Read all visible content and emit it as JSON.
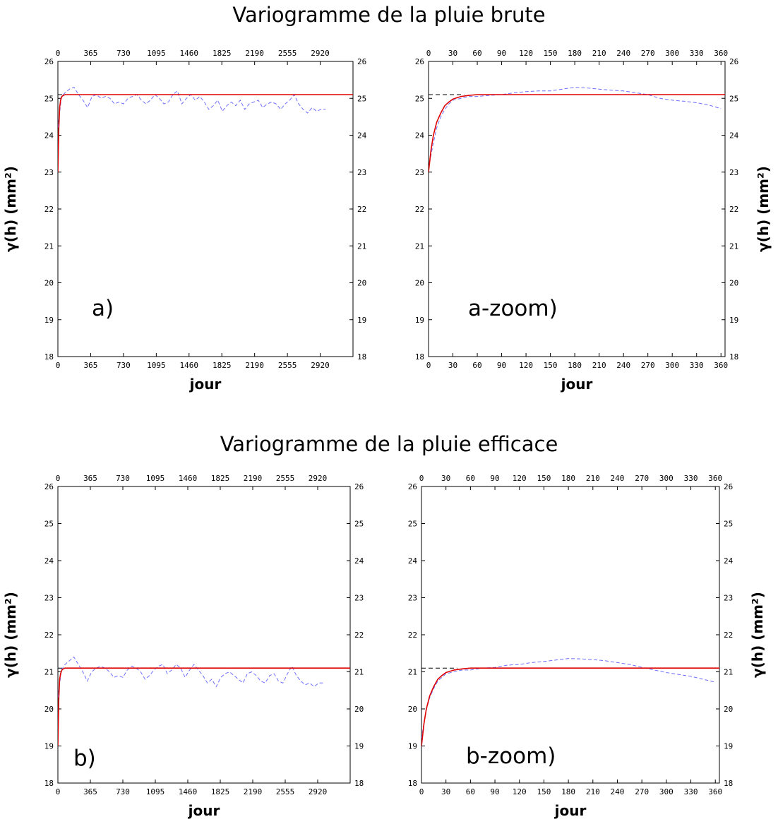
{
  "titles": {
    "top": "Variogramme de la pluie brute",
    "bottom": "Variogramme de la pluie efficace"
  },
  "colors": {
    "empirical": "#6f6fff",
    "model": "#e00000",
    "sill": "#000000",
    "axes": "#000000"
  },
  "chart_data": [
    {
      "id": "a",
      "type": "line",
      "panel_label": "a)",
      "xlabel": "jour",
      "ylabel": "γ(h)  (mm²)",
      "xlim": [
        0,
        3285
      ],
      "ylim": [
        18,
        26
      ],
      "xticks": [
        "0",
        "365",
        "730",
        "1095",
        "1460",
        "1825",
        "2190",
        "2555",
        "2920"
      ],
      "yticks": [
        "18",
        "19",
        "20",
        "21",
        "22",
        "23",
        "24",
        "25",
        "26"
      ],
      "sill": 25.1,
      "series": [
        {
          "style": "dashed-blue",
          "x": [
            0,
            40,
            80,
            130,
            180,
            230,
            280,
            330,
            380,
            430,
            480,
            530,
            580,
            630,
            680,
            730,
            780,
            830,
            880,
            930,
            980,
            1030,
            1080,
            1130,
            1180,
            1230,
            1280,
            1330,
            1380,
            1430,
            1480,
            1530,
            1580,
            1630,
            1680,
            1730,
            1780,
            1830,
            1880,
            1930,
            1980,
            2030,
            2080,
            2130,
            2180,
            2230,
            2280,
            2330,
            2380,
            2430,
            2480,
            2530,
            2580,
            2630,
            2680,
            2730,
            2780,
            2830,
            2880,
            2930,
            2980
          ],
          "y": [
            24.2,
            25.05,
            25.15,
            25.25,
            25.3,
            25.1,
            24.95,
            24.75,
            25.05,
            25.1,
            25.0,
            25.05,
            25.0,
            24.85,
            24.9,
            24.85,
            25.0,
            25.05,
            25.1,
            24.95,
            24.85,
            24.95,
            25.1,
            25.0,
            24.85,
            24.9,
            25.1,
            25.2,
            24.85,
            25.0,
            25.1,
            24.95,
            25.05,
            24.9,
            24.7,
            24.8,
            24.95,
            24.65,
            24.8,
            24.9,
            24.8,
            24.95,
            24.7,
            24.85,
            24.9,
            24.95,
            24.75,
            24.85,
            24.9,
            24.85,
            24.7,
            24.85,
            24.95,
            25.1,
            24.85,
            24.7,
            24.6,
            24.75,
            24.65,
            24.7,
            24.7
          ]
        },
        {
          "style": "solid-red",
          "x": [
            0,
            10,
            20,
            30,
            45,
            60,
            80,
            100,
            3285
          ],
          "y": [
            23.0,
            24.2,
            24.75,
            24.95,
            25.05,
            25.08,
            25.1,
            25.1,
            25.1
          ]
        }
      ]
    },
    {
      "id": "a-zoom",
      "type": "line",
      "panel_label": "a-zoom)",
      "xlabel": "jour",
      "ylabel": "γ(h)  (mm²)",
      "xlim": [
        0,
        365
      ],
      "ylim": [
        18,
        26
      ],
      "xticks": [
        "0",
        "30",
        "60",
        "90",
        "120",
        "150",
        "180",
        "210",
        "240",
        "270",
        "300",
        "330",
        "360"
      ],
      "yticks": [
        "18",
        "19",
        "20",
        "21",
        "22",
        "23",
        "24",
        "25",
        "26"
      ],
      "sill": 25.1,
      "series": [
        {
          "style": "dashed-blue",
          "x": [
            0,
            5,
            10,
            15,
            20,
            25,
            30,
            40,
            50,
            60,
            75,
            90,
            105,
            120,
            135,
            150,
            165,
            180,
            195,
            210,
            225,
            240,
            255,
            270,
            285,
            300,
            315,
            330,
            345,
            360
          ],
          "y": [
            23.1,
            23.7,
            24.2,
            24.5,
            24.7,
            24.85,
            24.95,
            25.0,
            25.05,
            25.05,
            25.08,
            25.1,
            25.15,
            25.18,
            25.2,
            25.2,
            25.25,
            25.3,
            25.28,
            25.25,
            25.22,
            25.2,
            25.15,
            25.1,
            25.0,
            24.95,
            24.92,
            24.88,
            24.82,
            24.72
          ]
        },
        {
          "style": "solid-red",
          "x": [
            0,
            3,
            6,
            10,
            15,
            20,
            25,
            30,
            40,
            50,
            60,
            80,
            365
          ],
          "y": [
            23.0,
            23.6,
            24.0,
            24.35,
            24.6,
            24.8,
            24.9,
            24.98,
            25.05,
            25.08,
            25.1,
            25.1,
            25.1
          ]
        }
      ]
    },
    {
      "id": "b",
      "type": "line",
      "panel_label": "b)",
      "xlabel": "jour",
      "ylabel": "γ(h) (mm²)",
      "xlim": [
        0,
        3285
      ],
      "ylim": [
        18,
        26
      ],
      "xticks": [
        "0",
        "365",
        "730",
        "1095",
        "1460",
        "1825",
        "2190",
        "2555",
        "2920"
      ],
      "yticks": [
        "18",
        "19",
        "20",
        "21",
        "22",
        "23",
        "24",
        "25",
        "26"
      ],
      "sill": 21.1,
      "series": [
        {
          "style": "dashed-blue",
          "x": [
            0,
            40,
            80,
            130,
            180,
            230,
            280,
            330,
            380,
            430,
            480,
            530,
            580,
            630,
            680,
            730,
            780,
            830,
            880,
            930,
            980,
            1030,
            1080,
            1130,
            1180,
            1230,
            1280,
            1330,
            1380,
            1430,
            1480,
            1530,
            1580,
            1630,
            1680,
            1730,
            1780,
            1830,
            1880,
            1930,
            1980,
            2030,
            2080,
            2130,
            2180,
            2230,
            2280,
            2330,
            2380,
            2430,
            2480,
            2530,
            2580,
            2630,
            2680,
            2730,
            2780,
            2830,
            2880,
            2930,
            2980
          ],
          "y": [
            20.3,
            21.05,
            21.2,
            21.3,
            21.4,
            21.2,
            21.0,
            20.75,
            21.0,
            21.1,
            21.15,
            21.1,
            21.0,
            20.85,
            20.9,
            20.85,
            21.05,
            21.15,
            21.1,
            21.0,
            20.8,
            20.9,
            21.05,
            21.15,
            21.2,
            20.95,
            21.05,
            21.2,
            21.1,
            20.85,
            21.05,
            21.2,
            21.05,
            20.9,
            20.7,
            20.8,
            20.6,
            20.85,
            20.95,
            21.0,
            20.9,
            20.8,
            20.7,
            20.95,
            21.0,
            20.9,
            20.75,
            20.7,
            20.9,
            20.95,
            20.75,
            20.7,
            20.95,
            21.15,
            20.9,
            20.75,
            20.65,
            20.7,
            20.6,
            20.7,
            20.7
          ]
        },
        {
          "style": "solid-red",
          "x": [
            0,
            10,
            20,
            30,
            45,
            60,
            80,
            100,
            3285
          ],
          "y": [
            19.0,
            20.3,
            20.8,
            20.95,
            21.05,
            21.08,
            21.1,
            21.1,
            21.1
          ]
        }
      ]
    },
    {
      "id": "b-zoom",
      "type": "line",
      "panel_label": "b-zoom)",
      "xlabel": "jour",
      "ylabel": "γ(h) (mm²)",
      "xlim": [
        0,
        365
      ],
      "ylim": [
        18,
        26
      ],
      "xticks": [
        "0",
        "30",
        "60",
        "90",
        "120",
        "150",
        "180",
        "210",
        "240",
        "270",
        "300",
        "330",
        "360"
      ],
      "yticks": [
        "18",
        "19",
        "20",
        "21",
        "22",
        "23",
        "24",
        "25",
        "26"
      ],
      "sill": 21.1,
      "series": [
        {
          "style": "dashed-blue",
          "x": [
            0,
            5,
            10,
            15,
            20,
            25,
            30,
            40,
            50,
            60,
            75,
            90,
            105,
            120,
            135,
            150,
            165,
            180,
            195,
            210,
            225,
            240,
            255,
            270,
            285,
            300,
            315,
            330,
            345,
            360
          ],
          "y": [
            19.2,
            19.9,
            20.3,
            20.55,
            20.75,
            20.85,
            20.95,
            21.0,
            21.05,
            21.05,
            21.1,
            21.12,
            21.18,
            21.2,
            21.25,
            21.28,
            21.32,
            21.36,
            21.35,
            21.33,
            21.3,
            21.25,
            21.2,
            21.12,
            21.05,
            20.98,
            20.93,
            20.88,
            20.8,
            20.72
          ]
        },
        {
          "style": "solid-red",
          "x": [
            0,
            3,
            6,
            10,
            15,
            20,
            25,
            30,
            40,
            50,
            60,
            80,
            365
          ],
          "y": [
            19.0,
            19.6,
            20.0,
            20.35,
            20.6,
            20.8,
            20.9,
            20.98,
            21.05,
            21.08,
            21.1,
            21.1,
            21.1
          ]
        }
      ]
    }
  ]
}
